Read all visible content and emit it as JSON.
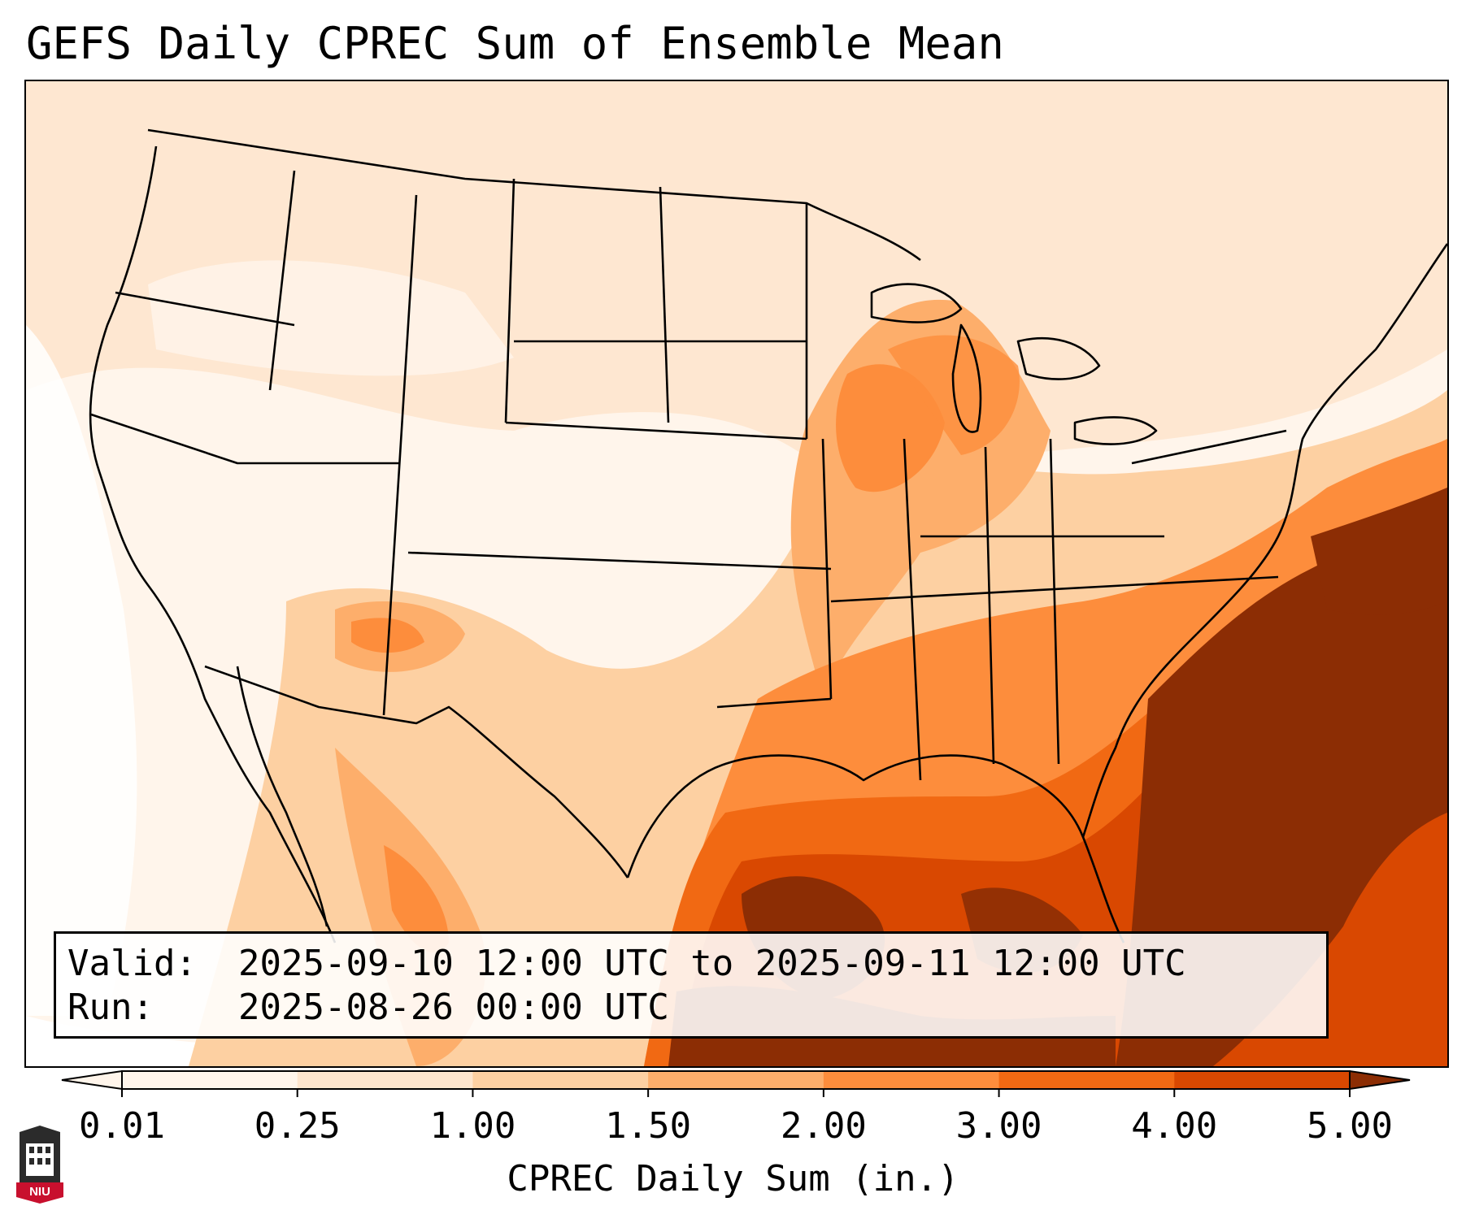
{
  "title": "GEFS Daily CPREC Sum of Ensemble Mean",
  "info": {
    "valid_label": "Valid:",
    "valid_value": "2025-09-10 12:00 UTC to 2025-09-11 12:00 UTC",
    "run_label": "Run:",
    "run_value": "2025-08-26 00:00 UTC"
  },
  "colorbar": {
    "label": "CPREC Daily Sum (in.)",
    "ticks": [
      "0.01",
      "0.25",
      "1.00",
      "1.50",
      "2.00",
      "3.00",
      "4.00",
      "5.00"
    ],
    "colors": [
      "#fff5eb",
      "#fee6ce",
      "#fdd0a2",
      "#fdae6b",
      "#fd8d3c",
      "#f16913",
      "#d94801",
      "#8c2d04"
    ],
    "extend": "both"
  },
  "logo": {
    "text": "NIU",
    "colors": {
      "red": "#c8102e",
      "dark": "#2b2b2b"
    }
  }
}
